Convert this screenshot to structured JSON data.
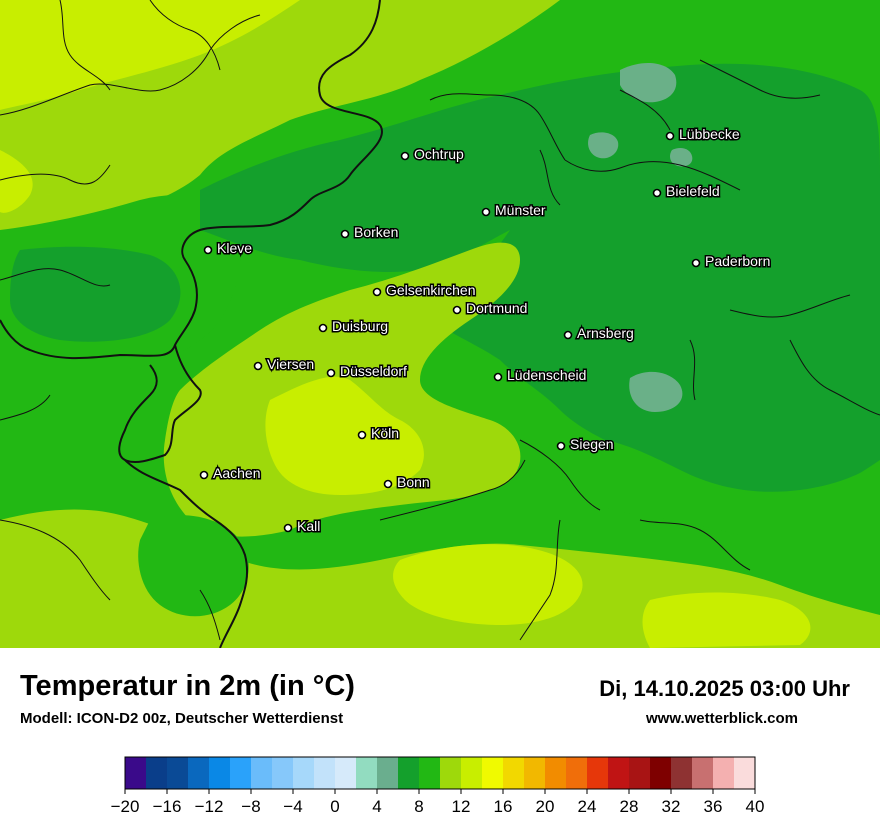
{
  "header": {
    "title": "Temperatur in 2m (in °C)",
    "model": "Modell: ICON-D2 00z, Deutscher Wetterdienst",
    "datetime": "Di, 14.10.2025 03:00 Uhr",
    "website": "www.wetterblick.com"
  },
  "colors": {
    "temp_6_8": "#14a02c",
    "temp_8_10": "#22b814",
    "temp_10_12": "#9ed90b",
    "temp_12_14": "#c8ee00",
    "temp_4_6": "#6ab088",
    "border": "#111111"
  },
  "cities": [
    {
      "name": "Lübbecke"
    },
    {
      "name": "Ochtrup"
    },
    {
      "name": "Bielefeld"
    },
    {
      "name": "Münster"
    },
    {
      "name": "Borken"
    },
    {
      "name": "Kleve"
    },
    {
      "name": "Paderborn"
    },
    {
      "name": "Gelsenkirchen"
    },
    {
      "name": "Dortmund"
    },
    {
      "name": "Duisburg"
    },
    {
      "name": "Arnsberg"
    },
    {
      "name": "Viersen"
    },
    {
      "name": "Düsseldorf"
    },
    {
      "name": "Lüdenscheid"
    },
    {
      "name": "Köln"
    },
    {
      "name": "Siegen"
    },
    {
      "name": "Aachen"
    },
    {
      "name": "Bonn"
    },
    {
      "name": "Kall"
    }
  ],
  "legend": {
    "colors": [
      "#3a0a8a",
      "#0a3e8a",
      "#0a4a96",
      "#0a68be",
      "#0a88e6",
      "#2aa2fa",
      "#6abcfa",
      "#86c8fa",
      "#a6d8fa",
      "#c2e2fa",
      "#d6eafa",
      "#92dcc0",
      "#6aae8e",
      "#14a02c",
      "#22b814",
      "#9ed90b",
      "#c8ee00",
      "#f0fa00",
      "#f2d800",
      "#f2b800",
      "#f28c00",
      "#f06e0a",
      "#e6370a",
      "#c01414",
      "#a81414",
      "#7e0000",
      "#8e3232",
      "#c87070",
      "#f4b0b0",
      "#fadcdc"
    ],
    "ticks": [
      "−20",
      "−16",
      "−12",
      "−8",
      "−4",
      "0",
      "4",
      "8",
      "12",
      "16",
      "20",
      "24",
      "28",
      "32",
      "36",
      "40"
    ]
  }
}
